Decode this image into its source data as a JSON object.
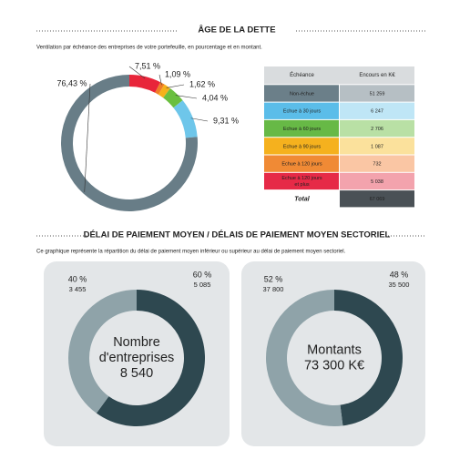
{
  "section1": {
    "title": "ÂGE DE LA DETTE",
    "subtitle": "Ventilation par échéance des entreprises de votre portefeuille, en pourcentage et en montant."
  },
  "chart_data": [
    {
      "type": "donut",
      "values": [
        7.51,
        1.09,
        1.62,
        4.04,
        9.31,
        76.43
      ],
      "value_labels": [
        "7,51 %",
        "1,09 %",
        "1,62 %",
        "4,04 %",
        "9,31 %",
        "76,43 %"
      ],
      "colors": [
        "#e8253a",
        "#f07d26",
        "#f6b11a",
        "#6abf3f",
        "#6ec6ea",
        "#687d87"
      ]
    },
    {
      "type": "donut",
      "values": [
        60,
        40
      ],
      "value_labels": [
        "60 %",
        "40 %"
      ],
      "sublabels": [
        "5 085",
        "3 455"
      ],
      "colors": [
        "#2e4850",
        "#8fa3a9"
      ],
      "center": [
        "Nombre",
        "d'entreprises",
        "8 540"
      ]
    },
    {
      "type": "donut",
      "values": [
        48,
        52
      ],
      "value_labels": [
        "48 %",
        "52 %"
      ],
      "sublabels": [
        "35 500",
        "37 800"
      ],
      "colors": [
        "#2e4850",
        "#8fa3a9"
      ],
      "center": [
        "Montants",
        "73 300 K€"
      ]
    }
  ],
  "table": {
    "header": [
      "Échéance",
      "Encours en K€"
    ],
    "rows": [
      [
        "Non-échue",
        "51 259"
      ],
      [
        "Echue à 30 jours",
        "6 247"
      ],
      [
        "Echue à 60 jours",
        "2 706"
      ],
      [
        "Echue à 90 jours",
        "1 087"
      ],
      [
        "Echue à 120 jours",
        "732"
      ],
      [
        "Echue à 120 jours et plus",
        "5 038"
      ],
      [
        "Total",
        "67 069"
      ]
    ]
  },
  "section2": {
    "title": "DÉLAI DE PAIEMENT MOYEN / DÉLAIS DE PAIEMENT MOYEN SECTORIEL",
    "subtitle": "Ce graphique représente la répartition du délai de paiement moyen inférieur ou supérieur au délai de paiement moyen sectoriel."
  }
}
